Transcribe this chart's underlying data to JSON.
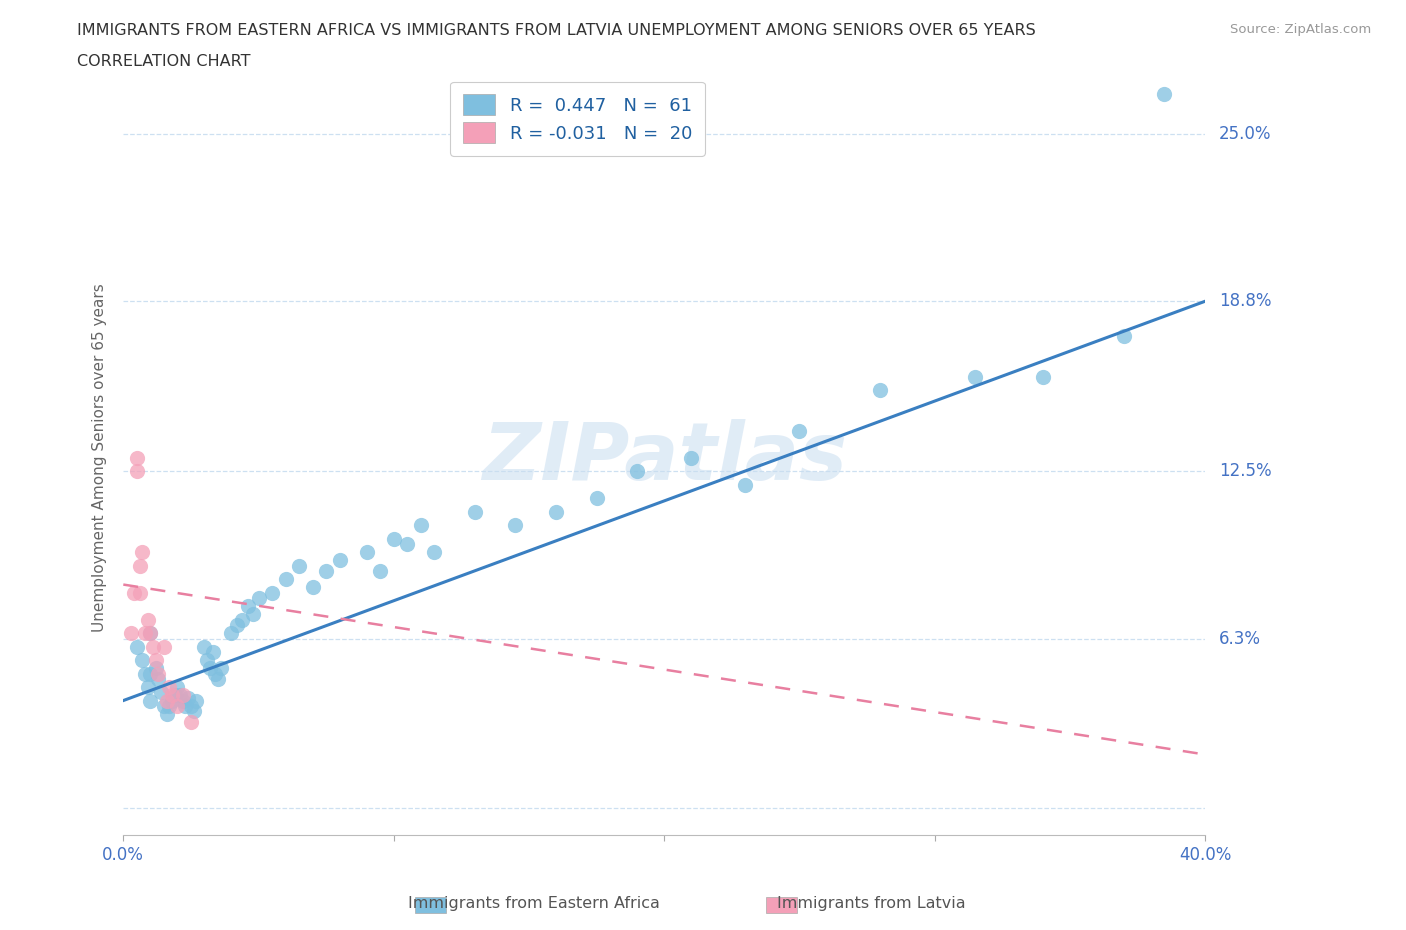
{
  "title_line1": "IMMIGRANTS FROM EASTERN AFRICA VS IMMIGRANTS FROM LATVIA UNEMPLOYMENT AMONG SENIORS OVER 65 YEARS",
  "title_line2": "CORRELATION CHART",
  "source": "Source: ZipAtlas.com",
  "ylabel": "Unemployment Among Seniors over 65 years",
  "yticks": [
    0.0,
    0.063,
    0.125,
    0.188,
    0.25
  ],
  "ytick_labels": [
    "",
    "6.3%",
    "12.5%",
    "18.8%",
    "25.0%"
  ],
  "xlim": [
    0.0,
    0.4
  ],
  "ylim": [
    -0.01,
    0.27
  ],
  "watermark": "ZIPatlas",
  "legend_label1": "Immigrants from Eastern Africa",
  "legend_label2": "Immigrants from Latvia",
  "color_eastern": "#7fbfdf",
  "color_latvia": "#f4a0b8",
  "color_line_eastern": "#3a7fc1",
  "color_line_latvia": "#e87fa0",
  "eastern_x": [
    0.005,
    0.007,
    0.008,
    0.009,
    0.01,
    0.01,
    0.01,
    0.012,
    0.013,
    0.014,
    0.015,
    0.016,
    0.017,
    0.018,
    0.019,
    0.02,
    0.021,
    0.022,
    0.023,
    0.024,
    0.025,
    0.026,
    0.027,
    0.03,
    0.031,
    0.032,
    0.033,
    0.034,
    0.035,
    0.036,
    0.04,
    0.042,
    0.044,
    0.046,
    0.048,
    0.05,
    0.055,
    0.06,
    0.065,
    0.07,
    0.075,
    0.08,
    0.09,
    0.095,
    0.1,
    0.105,
    0.11,
    0.115,
    0.13,
    0.145,
    0.16,
    0.175,
    0.19,
    0.21,
    0.23,
    0.25,
    0.28,
    0.315,
    0.34,
    0.37,
    0.385
  ],
  "eastern_y": [
    0.06,
    0.055,
    0.05,
    0.045,
    0.04,
    0.05,
    0.065,
    0.052,
    0.048,
    0.043,
    0.038,
    0.035,
    0.038,
    0.04,
    0.042,
    0.045,
    0.042,
    0.04,
    0.038,
    0.041,
    0.038,
    0.036,
    0.04,
    0.06,
    0.055,
    0.052,
    0.058,
    0.05,
    0.048,
    0.052,
    0.065,
    0.068,
    0.07,
    0.075,
    0.072,
    0.078,
    0.08,
    0.085,
    0.09,
    0.082,
    0.088,
    0.092,
    0.095,
    0.088,
    0.1,
    0.098,
    0.105,
    0.095,
    0.11,
    0.105,
    0.11,
    0.115,
    0.125,
    0.13,
    0.12,
    0.14,
    0.155,
    0.16,
    0.16,
    0.175,
    0.265
  ],
  "latvia_x": [
    0.003,
    0.004,
    0.005,
    0.005,
    0.006,
    0.006,
    0.007,
    0.008,
    0.009,
    0.01,
    0.011,
    0.012,
    0.013,
    0.015,
    0.016,
    0.017,
    0.018,
    0.02,
    0.022,
    0.025
  ],
  "latvia_y": [
    0.065,
    0.08,
    0.125,
    0.13,
    0.08,
    0.09,
    0.095,
    0.065,
    0.07,
    0.065,
    0.06,
    0.055,
    0.05,
    0.06,
    0.04,
    0.045,
    0.042,
    0.038,
    0.042,
    0.032
  ],
  "line_eastern_x0": 0.0,
  "line_eastern_y0": 0.04,
  "line_eastern_x1": 0.4,
  "line_eastern_y1": 0.188,
  "line_latvia_x0": 0.0,
  "line_latvia_y0": 0.083,
  "line_latvia_x1": 0.4,
  "line_latvia_y1": 0.02
}
